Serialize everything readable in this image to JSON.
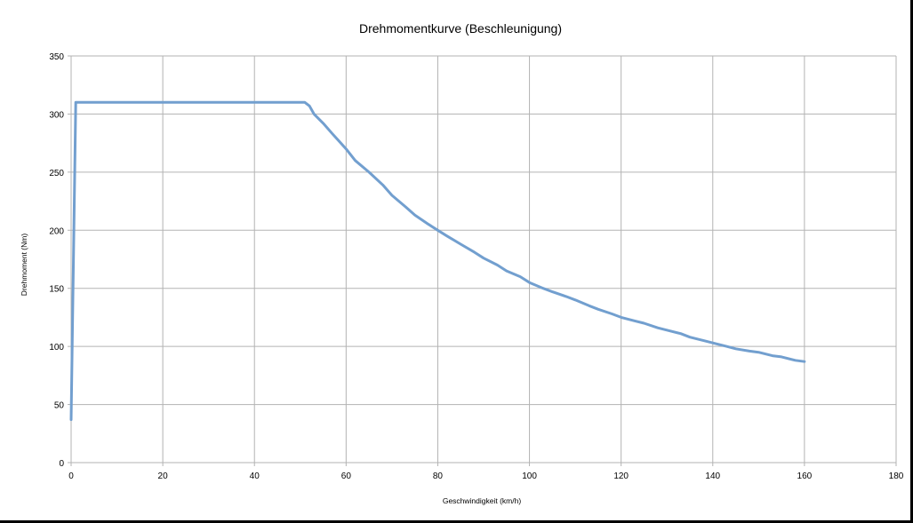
{
  "chart_data": {
    "type": "line",
    "title": "Drehmomentkurve (Beschleunigung)",
    "xlabel": "Geschwindigkeit (km/h)",
    "ylabel": "Drehmoment (Nm)",
    "xlim": [
      0,
      180
    ],
    "ylim": [
      0,
      350
    ],
    "x_ticks": [
      0,
      20,
      40,
      60,
      80,
      100,
      120,
      140,
      160,
      180
    ],
    "y_ticks": [
      0,
      50,
      100,
      150,
      200,
      250,
      300,
      350
    ],
    "grid": true,
    "legend": "none",
    "series": [
      {
        "color": "#729fcf",
        "points": [
          [
            0,
            37
          ],
          [
            1,
            310
          ],
          [
            5,
            310
          ],
          [
            10,
            310
          ],
          [
            20,
            310
          ],
          [
            30,
            310
          ],
          [
            40,
            310
          ],
          [
            50,
            310
          ],
          [
            51,
            310
          ],
          [
            52,
            307
          ],
          [
            53,
            300
          ],
          [
            55,
            292
          ],
          [
            57,
            283
          ],
          [
            60,
            270
          ],
          [
            62,
            260
          ],
          [
            65,
            250
          ],
          [
            68,
            239
          ],
          [
            70,
            230
          ],
          [
            73,
            220
          ],
          [
            75,
            213
          ],
          [
            78,
            205
          ],
          [
            80,
            200
          ],
          [
            82,
            195
          ],
          [
            85,
            188
          ],
          [
            88,
            181
          ],
          [
            90,
            176
          ],
          [
            93,
            170
          ],
          [
            95,
            165
          ],
          [
            98,
            160
          ],
          [
            100,
            155
          ],
          [
            103,
            150
          ],
          [
            105,
            147
          ],
          [
            108,
            143
          ],
          [
            110,
            140
          ],
          [
            113,
            135
          ],
          [
            115,
            132
          ],
          [
            118,
            128
          ],
          [
            120,
            125
          ],
          [
            123,
            122
          ],
          [
            125,
            120
          ],
          [
            128,
            116
          ],
          [
            130,
            114
          ],
          [
            133,
            111
          ],
          [
            135,
            108
          ],
          [
            138,
            105
          ],
          [
            140,
            103
          ],
          [
            143,
            100
          ],
          [
            145,
            98
          ],
          [
            148,
            96
          ],
          [
            150,
            95
          ],
          [
            153,
            92
          ],
          [
            155,
            91
          ],
          [
            158,
            88
          ],
          [
            160,
            87
          ]
        ]
      }
    ]
  }
}
